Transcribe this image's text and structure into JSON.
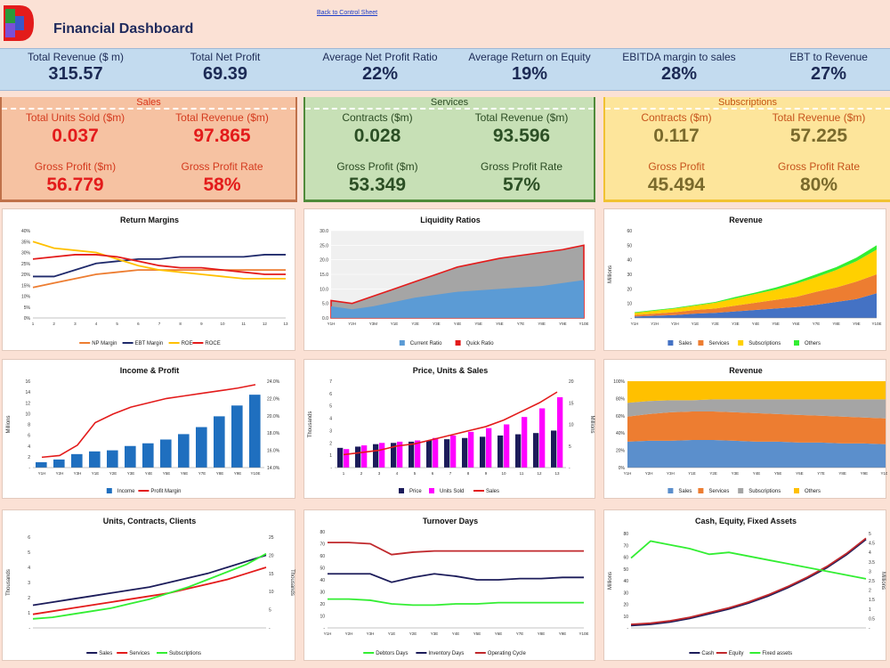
{
  "header": {
    "title": "Financial Dashboard",
    "back_link": "Back to Control Sheet"
  },
  "kpis": [
    {
      "label": "Total Revenue ($ m)",
      "value": "315.57"
    },
    {
      "label": "Total Net Profit",
      "value": "69.39"
    },
    {
      "label": "Average Net Profit Ratio",
      "value": "22%"
    },
    {
      "label": "Average Return on Equity",
      "value": "19%"
    },
    {
      "label": "EBITDA margin to sales",
      "value": "28%"
    },
    {
      "label": "EBT to Revenue",
      "value": "27%"
    }
  ],
  "segments": {
    "sales": {
      "title": "Sales",
      "items": [
        {
          "label": "Total Units Sold ($m)",
          "value": "0.037"
        },
        {
          "label": "Total Revenue ($m)",
          "value": "97.865"
        },
        {
          "label": "Gross Profit ($m)",
          "value": "56.779"
        },
        {
          "label": "Gross Profit Rate",
          "value": "58%"
        }
      ]
    },
    "services": {
      "title": "Services",
      "items": [
        {
          "label": "Contracts ($m)",
          "value": "0.028"
        },
        {
          "label": "Total Revenue ($m)",
          "value": "93.596"
        },
        {
          "label": "Gross Profit ($m)",
          "value": "53.349"
        },
        {
          "label": "Gross Profit Rate",
          "value": "57%"
        }
      ]
    },
    "subscriptions": {
      "title": "Subscriptions",
      "items": [
        {
          "label": "Contracts ($m)",
          "value": "0.117"
        },
        {
          "label": "Total Revenue ($m)",
          "value": "57.225"
        },
        {
          "label": "Gross Profit",
          "value": "45.494"
        },
        {
          "label": "Gross Profit Rate",
          "value": "80%"
        }
      ]
    }
  },
  "chart_data": [
    {
      "type": "line",
      "title": "Return Margins",
      "categories": [
        "1",
        "2",
        "3",
        "4",
        "5",
        "6",
        "7",
        "8",
        "9",
        "10",
        "11",
        "12",
        "13"
      ],
      "ylim": [
        0,
        40
      ],
      "yticks": [
        "0%",
        "5%",
        "10%",
        "15%",
        "20%",
        "25%",
        "30%",
        "35%",
        "40%"
      ],
      "series": [
        {
          "name": "NP Margin",
          "color": "#ed7d31",
          "values": [
            14,
            16,
            18,
            20,
            21,
            22,
            22,
            22,
            22,
            22,
            22,
            22,
            22
          ]
        },
        {
          "name": "EBT Margin",
          "color": "#1f2a6b",
          "values": [
            19,
            19,
            22,
            25,
            26,
            27,
            27,
            28,
            28,
            28,
            28,
            29,
            29
          ]
        },
        {
          "name": "ROE",
          "color": "#ffc000",
          "values": [
            35,
            32,
            31,
            30,
            27,
            24,
            22,
            21,
            20,
            19,
            18,
            18,
            18
          ]
        },
        {
          "name": "ROCE",
          "color": "#e31b1b",
          "values": [
            27,
            28,
            29,
            29,
            28,
            26,
            24,
            23,
            23,
            22,
            21,
            20,
            20
          ]
        }
      ]
    },
    {
      "type": "area",
      "title": "Liquidity Ratios",
      "categories": [
        "Y1H",
        "Y2H",
        "Y3M",
        "Y1E",
        "Y2E",
        "Y3E",
        "Y4E",
        "Y5E",
        "Y6E",
        "Y7E",
        "Y8E",
        "Y9E",
        "Y10E"
      ],
      "ylim": [
        0,
        30
      ],
      "yticks": [
        "0.0",
        "5.0",
        "10.0",
        "15.0",
        "20.0",
        "25.0",
        "30.0"
      ],
      "series": [
        {
          "name": "Current Ratio",
          "color": "#5b9bd5",
          "values": [
            4,
            3,
            4,
            5.5,
            7,
            8,
            9,
            9.5,
            10,
            10.5,
            11,
            12,
            13
          ]
        },
        {
          "name": "Quick Ratio",
          "color": "#e31b1b",
          "values": [
            6,
            5,
            7.5,
            10,
            12.5,
            15,
            17.5,
            19,
            20.5,
            21.5,
            22.5,
            23.5,
            25
          ]
        }
      ]
    },
    {
      "type": "area",
      "title": "Revenue",
      "ylabel": "Millions",
      "categories": [
        "Y1H",
        "Y2H",
        "Y3H",
        "Y1E",
        "Y2E",
        "Y3E",
        "Y4E",
        "Y5E",
        "Y6E",
        "Y7E",
        "Y8E",
        "Y9E",
        "Y10E"
      ],
      "ylim": [
        0,
        60
      ],
      "yticks": [
        "-",
        "10",
        "20",
        "30",
        "40",
        "50",
        "60"
      ],
      "series": [
        {
          "name": "Sales",
          "color": "#4472c4",
          "values": [
            1,
            1.5,
            2,
            3,
            3.5,
            4.5,
            5.5,
            6.5,
            7.5,
            9,
            11,
            13,
            17
          ]
        },
        {
          "name": "Services",
          "color": "#ed7d31",
          "values": [
            1,
            1.5,
            2,
            2.5,
            3,
            4,
            5,
            6,
            7,
            9,
            10,
            12,
            13
          ]
        },
        {
          "name": "Subscriptions",
          "color": "#ffd000",
          "values": [
            1.5,
            2,
            2.5,
            3,
            4,
            5,
            6,
            7,
            9,
            10,
            12,
            14,
            17
          ]
        },
        {
          "name": "Others",
          "color": "#33ee33",
          "values": [
            0.5,
            0.5,
            0.5,
            0.5,
            0.5,
            1,
            1,
            1.5,
            1.5,
            2,
            2,
            2.5,
            3
          ]
        }
      ]
    },
    {
      "type": "bar",
      "title": "Income & Profit",
      "ylabel": "Millions",
      "categories": [
        "Y1H",
        "Y2H",
        "Y3H",
        "Y1E",
        "Y2E",
        "Y3E",
        "Y4E",
        "Y5E",
        "Y6E",
        "Y7E",
        "Y8E",
        "Y9E",
        "Y10E"
      ],
      "ylim": [
        0,
        16
      ],
      "yticks": [
        "-",
        "2",
        "4",
        "6",
        "8",
        "10",
        "12",
        "14",
        "16"
      ],
      "y2lim": [
        14,
        24
      ],
      "y2ticks": [
        "14.0%",
        "16.0%",
        "18.0%",
        "20.0%",
        "22.0%",
        "24.0%"
      ],
      "series": [
        {
          "name": "Income",
          "color": "#1f6fbf",
          "values": [
            1,
            1.5,
            2.5,
            3,
            3.2,
            4,
            4.5,
            5.2,
            6.2,
            7.5,
            9.5,
            11.5,
            13.5
          ]
        },
        {
          "name": "Profit Margin",
          "color": "#e31b1b",
          "axis": "right",
          "values": [
            15.2,
            15.4,
            16.6,
            19.2,
            20.2,
            21,
            21.5,
            22,
            22.3,
            22.6,
            22.9,
            23.2,
            23.6
          ]
        }
      ]
    },
    {
      "type": "bar",
      "title": "Price, Units & Sales",
      "ylabel": "Thousands",
      "y2label": "Millions",
      "categories": [
        "1",
        "2",
        "3",
        "4",
        "5",
        "6",
        "7",
        "8",
        "9",
        "10",
        "11",
        "12",
        "13"
      ],
      "ylim": [
        0,
        7
      ],
      "yticks": [
        "-",
        "1",
        "2",
        "3",
        "4",
        "5",
        "6",
        "7"
      ],
      "y2lim": [
        0,
        20
      ],
      "y2ticks": [
        "-",
        "5",
        "10",
        "15",
        "20"
      ],
      "series": [
        {
          "name": "Price",
          "color": "#1c1c5a",
          "values": [
            1.6,
            1.7,
            1.9,
            2,
            2.1,
            2.2,
            2.3,
            2.4,
            2.5,
            2.6,
            2.7,
            2.8,
            3
          ]
        },
        {
          "name": "Units Sold",
          "color": "#ff00ff",
          "values": [
            1.5,
            1.8,
            2,
            2.1,
            2.2,
            2.4,
            2.6,
            2.9,
            3.2,
            3.5,
            4.1,
            4.8,
            5.7
          ]
        },
        {
          "name": "Sales",
          "color": "#e31b1b",
          "axis": "right",
          "values": [
            3,
            3.5,
            4,
            5,
            5.5,
            6.5,
            7.5,
            8.5,
            9.5,
            11,
            13,
            15,
            17.5
          ]
        }
      ]
    },
    {
      "type": "area",
      "title": "Revenue",
      "categories": [
        "Y1H",
        "Y2H",
        "Y3H",
        "Y1E",
        "Y2E",
        "Y3E",
        "Y4E",
        "Y5E",
        "Y6E",
        "Y7E",
        "Y8E",
        "Y9E",
        "Y10E"
      ],
      "ylim": [
        0,
        100
      ],
      "yticks": [
        "0%",
        "20%",
        "40%",
        "60%",
        "80%",
        "100%"
      ],
      "series": [
        {
          "name": "Sales",
          "color": "#5b8fcc",
          "values": [
            30,
            31,
            31,
            32,
            32,
            31,
            30,
            30,
            29,
            29,
            28,
            28,
            27
          ]
        },
        {
          "name": "Services",
          "color": "#ed7d31",
          "values": [
            29,
            31,
            33,
            33,
            33,
            33,
            33,
            32,
            32,
            31,
            31,
            30,
            30
          ]
        },
        {
          "name": "Subscriptions",
          "color": "#a5a5a5",
          "values": [
            16,
            15,
            14,
            13,
            14,
            15,
            16,
            17,
            18,
            19,
            20,
            21,
            22
          ]
        },
        {
          "name": "Others",
          "color": "#ffc000",
          "values": [
            25,
            23,
            22,
            22,
            21,
            21,
            21,
            21,
            21,
            21,
            21,
            21,
            21
          ]
        }
      ]
    },
    {
      "type": "line",
      "title": "Units, Contracts, Clients",
      "ylabel": "Thousands",
      "y2label": "Thousands",
      "categories": [
        "1",
        "2",
        "3",
        "4",
        "5",
        "6",
        "7",
        "8",
        "9",
        "10",
        "11",
        "12",
        "13"
      ],
      "ylim": [
        0,
        6
      ],
      "yticks": [
        "-",
        "1",
        "2",
        "3",
        "4",
        "5",
        "6"
      ],
      "y2lim": [
        0,
        25
      ],
      "y2ticks": [
        "-",
        "5",
        "10",
        "15",
        "20",
        "25"
      ],
      "series": [
        {
          "name": "Sales",
          "color": "#1c1c5a",
          "values": [
            1.5,
            1.7,
            1.9,
            2.1,
            2.3,
            2.5,
            2.7,
            3,
            3.3,
            3.6,
            4,
            4.4,
            4.8
          ]
        },
        {
          "name": "Services",
          "color": "#e31b1b",
          "values": [
            0.9,
            1.1,
            1.3,
            1.5,
            1.7,
            1.9,
            2.1,
            2.3,
            2.6,
            2.9,
            3.2,
            3.6,
            4
          ]
        },
        {
          "name": "Subscriptions",
          "color": "#33ee33",
          "values": [
            0.6,
            0.7,
            0.9,
            1.1,
            1.3,
            1.6,
            1.9,
            2.3,
            2.7,
            3.2,
            3.7,
            4.2,
            4.9
          ]
        }
      ]
    },
    {
      "type": "line",
      "title": "Turnover Days",
      "categories": [
        "Y1H",
        "Y2H",
        "Y3H",
        "Y1E",
        "Y2E",
        "Y3E",
        "Y4E",
        "Y5E",
        "Y6E",
        "Y7E",
        "Y8E",
        "Y9E",
        "Y10E"
      ],
      "ylim": [
        0,
        80
      ],
      "yticks": [
        "-",
        "10",
        "20",
        "30",
        "40",
        "50",
        "60",
        "70",
        "80"
      ],
      "series": [
        {
          "name": "Debtors Days",
          "color": "#33ee33",
          "values": [
            24,
            24,
            23,
            20,
            19,
            19,
            20,
            20,
            21,
            21,
            21,
            21,
            21
          ]
        },
        {
          "name": "Inventory Days",
          "color": "#1c1c5a",
          "values": [
            45,
            45,
            45,
            38,
            42,
            45,
            43,
            40,
            40,
            41,
            41,
            42,
            42
          ]
        },
        {
          "name": "Operating Cycle",
          "color": "#c0282c",
          "values": [
            71,
            71,
            70,
            61,
            63,
            64,
            64,
            64,
            64,
            64,
            64,
            64,
            64
          ]
        }
      ]
    },
    {
      "type": "line",
      "title": "Cash, Equity, Fixed Assets",
      "ylabel": "Millions",
      "y2label": "Millions",
      "categories": [
        "1",
        "2",
        "3",
        "4",
        "5",
        "6",
        "7",
        "8",
        "9",
        "10",
        "11",
        "12",
        "13"
      ],
      "ylim": [
        0,
        80
      ],
      "yticks": [
        "-",
        "10",
        "20",
        "30",
        "40",
        "50",
        "60",
        "70",
        "80"
      ],
      "y2lim": [
        0,
        5
      ],
      "y2ticks": [
        "-",
        "0.5",
        "1",
        "1.5",
        "2",
        "2.5",
        "3",
        "3.5",
        "4",
        "4.5",
        "5"
      ],
      "series": [
        {
          "name": "Cash",
          "color": "#1c1c5a",
          "values": [
            2,
            3,
            5,
            8,
            12,
            16,
            21,
            27,
            34,
            42,
            51,
            62,
            75
          ]
        },
        {
          "name": "Equity",
          "color": "#c0282c",
          "values": [
            3,
            4,
            6,
            9,
            13,
            17,
            22,
            28,
            35,
            43,
            52,
            63,
            76
          ]
        },
        {
          "name": "Fixed assets",
          "color": "#33ee33",
          "axis": "right",
          "values": [
            3.7,
            4.6,
            4.4,
            4.2,
            3.9,
            4,
            3.8,
            3.6,
            3.4,
            3.2,
            3,
            2.8,
            2.6
          ]
        }
      ]
    }
  ]
}
